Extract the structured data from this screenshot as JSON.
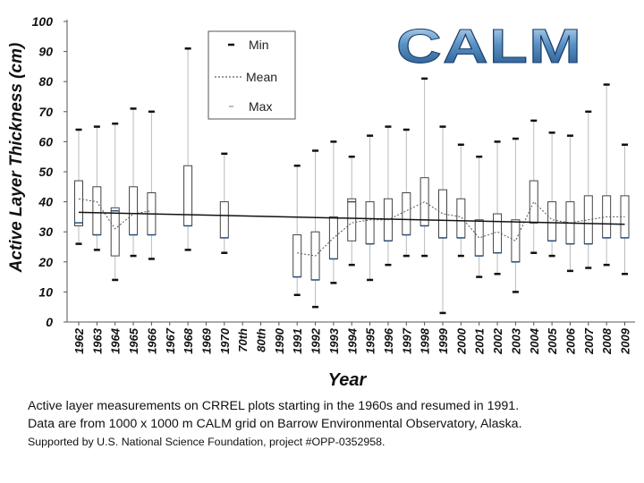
{
  "logo_text": "CALM",
  "chart_data": {
    "type": "box",
    "ylabel": "Active Layer Thickness (cm)",
    "xlabel": "Year",
    "ylim": [
      0,
      100
    ],
    "yticks": [
      0,
      10,
      20,
      30,
      40,
      50,
      60,
      70,
      80,
      90,
      100
    ],
    "grid": false,
    "legend_position": "top-center",
    "legend": [
      "Min",
      "Mean",
      "Max"
    ],
    "categories": [
      "1962",
      "1963",
      "1964",
      "1965",
      "1966",
      "1967",
      "1968",
      "1969",
      "1970",
      "70th",
      "80th",
      "1990",
      "1991",
      "1992",
      "1993",
      "1994",
      "1995",
      "1996",
      "1997",
      "1998",
      "1999",
      "2000",
      "2001",
      "2002",
      "2003",
      "2004",
      "2005",
      "2006",
      "2007",
      "2008",
      "2009"
    ],
    "boxes": [
      {
        "x": "1962",
        "min": 26,
        "q1": 32,
        "median": 33,
        "q3": 47,
        "max": 64,
        "mean": 41
      },
      {
        "x": "1963",
        "min": 24,
        "q1": 29,
        "median": 29,
        "q3": 45,
        "max": 65,
        "mean": 40
      },
      {
        "x": "1964",
        "min": 14,
        "q1": 22,
        "median": 37,
        "q3": 38,
        "max": 66,
        "mean": 31
      },
      {
        "x": "1965",
        "min": 22,
        "q1": 29,
        "median": 29,
        "q3": 45,
        "max": 71,
        "mean": 36
      },
      {
        "x": "1966",
        "min": 21,
        "q1": 29,
        "median": 29,
        "q3": 43,
        "max": 70,
        "mean": 37
      },
      {
        "x": "1968",
        "min": 24,
        "q1": 32,
        "median": 32,
        "q3": 52,
        "max": 91,
        "mean": null
      },
      {
        "x": "1970",
        "min": 23,
        "q1": 28,
        "median": 28,
        "q3": 40,
        "max": 56,
        "mean": null
      },
      {
        "x": "1991",
        "min": 9,
        "q1": 15,
        "median": 15,
        "q3": 29,
        "max": 52,
        "mean": 23
      },
      {
        "x": "1992",
        "min": 5,
        "q1": 14,
        "median": 14,
        "q3": 30,
        "max": 57,
        "mean": 22
      },
      {
        "x": "1993",
        "min": 13,
        "q1": 21,
        "median": 21,
        "q3": 35,
        "max": 60,
        "mean": 28
      },
      {
        "x": "1994",
        "min": 19,
        "q1": 27,
        "median": 40,
        "q3": 41,
        "max": 55,
        "mean": 33
      },
      {
        "x": "1995",
        "min": 14,
        "q1": 26,
        "median": 26,
        "q3": 40,
        "max": 62,
        "mean": 34
      },
      {
        "x": "1996",
        "min": 19,
        "q1": 27,
        "median": 27,
        "q3": 41,
        "max": 65,
        "mean": 34
      },
      {
        "x": "1997",
        "min": 22,
        "q1": 29,
        "median": 29,
        "q3": 43,
        "max": 64,
        "mean": 37
      },
      {
        "x": "1998",
        "min": 22,
        "q1": 32,
        "median": 32,
        "q3": 48,
        "max": 81,
        "mean": 40
      },
      {
        "x": "1999",
        "min": 3,
        "q1": 28,
        "median": 28,
        "q3": 44,
        "max": 65,
        "mean": 36
      },
      {
        "x": "2000",
        "min": 22,
        "q1": 28,
        "median": 28,
        "q3": 41,
        "max": 59,
        "mean": 35
      },
      {
        "x": "2001",
        "min": 15,
        "q1": 22,
        "median": 22,
        "q3": 34,
        "max": 55,
        "mean": 28
      },
      {
        "x": "2002",
        "min": 16,
        "q1": 23,
        "median": 23,
        "q3": 36,
        "max": 60,
        "mean": 30
      },
      {
        "x": "2003",
        "min": 10,
        "q1": 20,
        "median": 20,
        "q3": 34,
        "max": 61,
        "mean": 27
      },
      {
        "x": "2004",
        "min": 23,
        "q1": 33,
        "median": 33,
        "q3": 47,
        "max": 67,
        "mean": 40
      },
      {
        "x": "2005",
        "min": 22,
        "q1": 27,
        "median": 27,
        "q3": 40,
        "max": 63,
        "mean": 34
      },
      {
        "x": "2006",
        "min": 17,
        "q1": 26,
        "median": 26,
        "q3": 40,
        "max": 62,
        "mean": 33
      },
      {
        "x": "2007",
        "min": 18,
        "q1": 26,
        "median": 26,
        "q3": 42,
        "max": 70,
        "mean": 34
      },
      {
        "x": "2008",
        "min": 19,
        "q1": 28,
        "median": 28,
        "q3": 42,
        "max": 79,
        "mean": 35
      },
      {
        "x": "2009",
        "min": 16,
        "q1": 28,
        "median": 28,
        "q3": 42,
        "max": 59,
        "mean": 35
      }
    ],
    "trend": {
      "from": "1962",
      "to": "2009",
      "start": 36.5,
      "end": 32.5
    }
  },
  "caption": {
    "line1": "Active layer measurements on CRREL plots starting in the 1960s and resumed in 1991.",
    "line2": "Data are from 1000 x 1000 m CALM grid on Barrow Environmental Observatory, Alaska.",
    "line3": "Supported by U.S. National Science Foundation, project #OPP-0352958."
  }
}
